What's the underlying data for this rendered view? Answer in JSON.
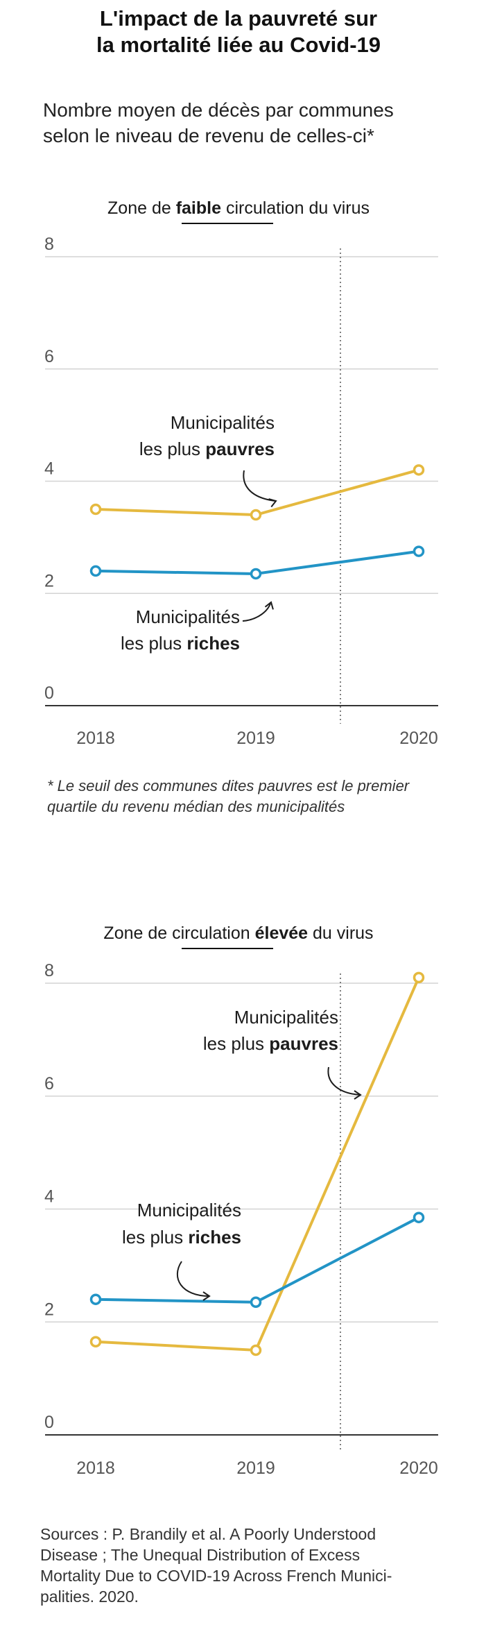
{
  "title_line1": "L'impact de la pauvreté sur",
  "title_line2": "la mortalité liée au Covid-19",
  "subtitle_line1": "Nombre moyen de décès par communes",
  "subtitle_line2": "selon le niveau de revenu de celles-ci*",
  "footnote_line1": "* Le seuil des communes dites pauvres est le premier",
  "footnote_line2": "quartile du revenu médian des municipalités",
  "sources_line1": "Sources : P. Brandily et al. A Poorly Understood",
  "sources_line2": "Disease ; The Unequal Distribution of Excess",
  "sources_line3": "Mortality Due to COVID-19 Across French Munici-",
  "sources_line4": "palities. 2020.",
  "colors": {
    "poor": "#e5b93f",
    "rich": "#2294c6",
    "grid": "#d3d3d3",
    "axis": "#333333"
  },
  "chart_data": [
    {
      "type": "line",
      "title_pre": "Zone de ",
      "title_bold": "faible",
      "title_post": " circulation du virus",
      "x": [
        "2018",
        "2019",
        "2020"
      ],
      "ylim": [
        0,
        8
      ],
      "yticks": [
        "0",
        "2",
        "4",
        "6",
        "8"
      ],
      "grid": true,
      "series": [
        {
          "id": "poor",
          "values": [
            3.5,
            3.4,
            4.2
          ]
        },
        {
          "id": "rich",
          "values": [
            2.4,
            2.35,
            2.75
          ]
        }
      ],
      "annotations": [
        {
          "id": "poor",
          "line1": "Municipalités",
          "line2_plain": "les plus ",
          "line2_bold": "pauvres"
        },
        {
          "id": "rich",
          "line1": "Municipalités",
          "line2_plain": "les plus ",
          "line2_bold": "riches"
        }
      ]
    },
    {
      "type": "line",
      "title_pre": "Zone de circulation ",
      "title_bold": "élevée",
      "title_post": " du virus",
      "x": [
        "2018",
        "2019",
        "2020"
      ],
      "ylim": [
        0,
        8
      ],
      "yticks": [
        "0",
        "2",
        "4",
        "6",
        "8"
      ],
      "grid": true,
      "series": [
        {
          "id": "poor",
          "values": [
            1.65,
            1.5,
            8.1
          ]
        },
        {
          "id": "rich",
          "values": [
            2.4,
            2.35,
            3.85
          ]
        }
      ],
      "annotations": [
        {
          "id": "poor",
          "line1": "Municipalités",
          "line2_plain": "les plus ",
          "line2_bold": "pauvres"
        },
        {
          "id": "rich",
          "line1": "Municipalités",
          "line2_plain": "les plus ",
          "line2_bold": "riches"
        }
      ]
    }
  ]
}
